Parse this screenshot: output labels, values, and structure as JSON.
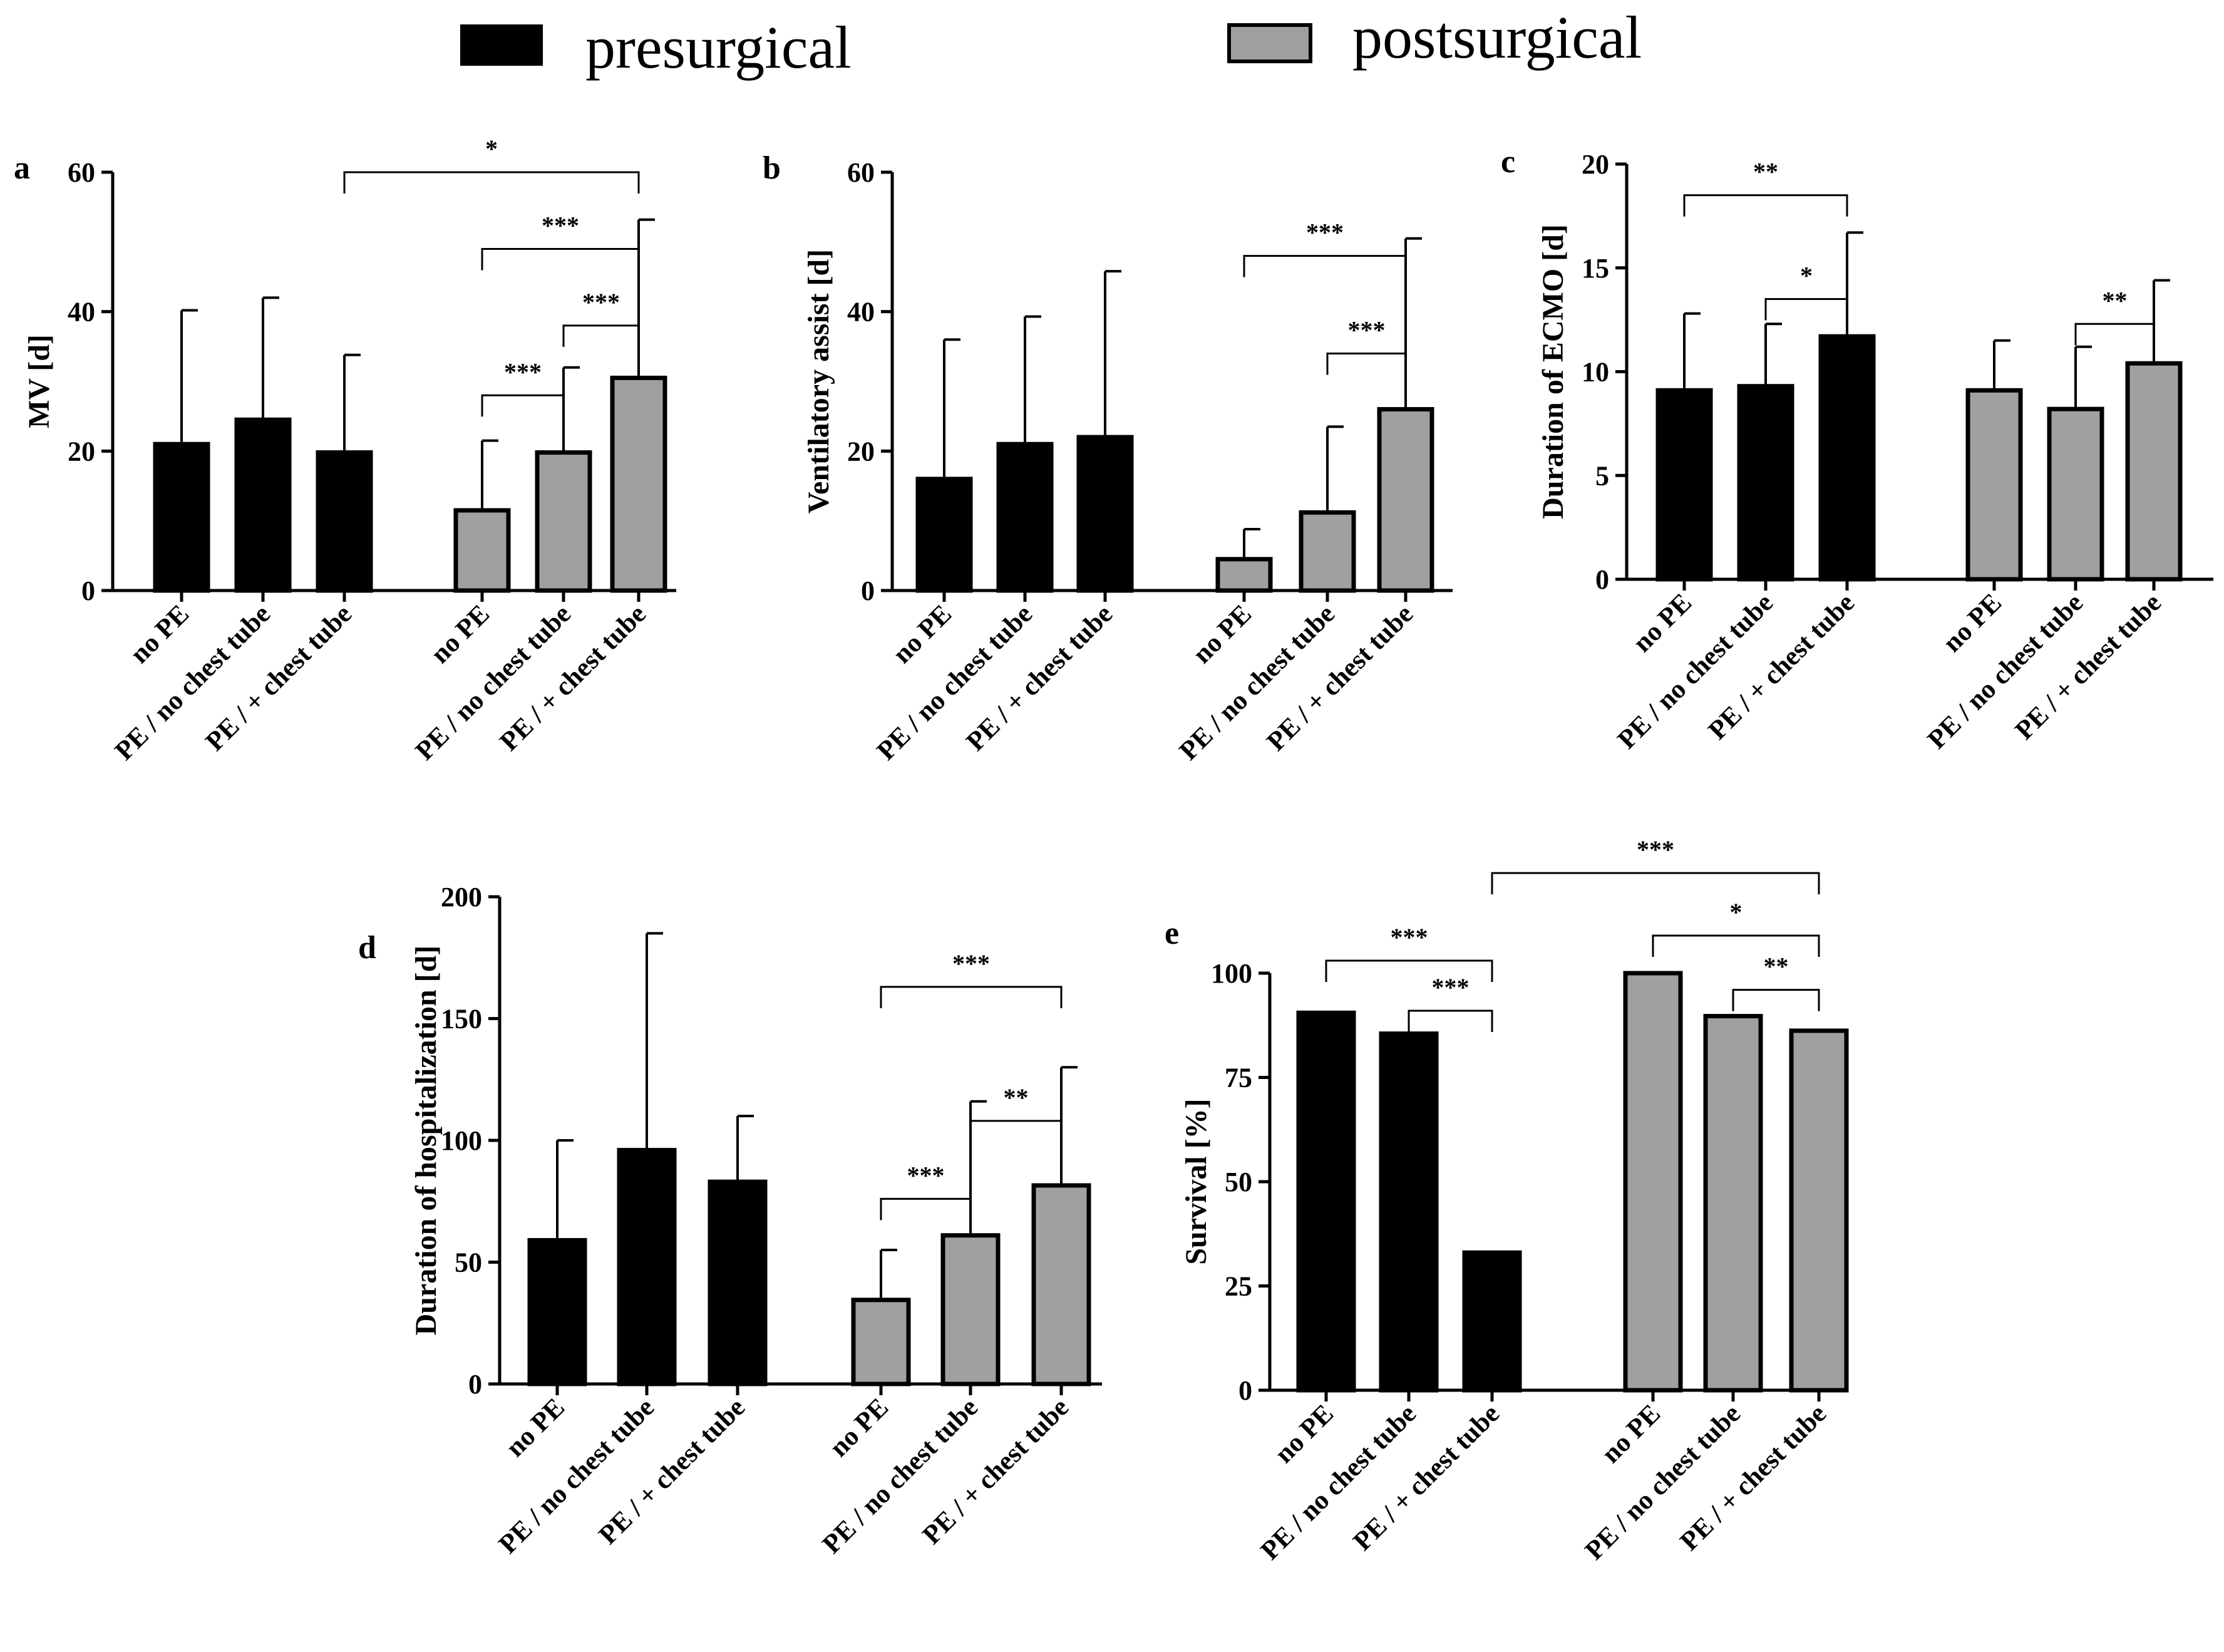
{
  "legend": {
    "presurgical_label": "presurgical",
    "postsurgical_label": "postsurgical",
    "presurgical_color": "#000000",
    "postsurgical_color": "#a0a0a0"
  },
  "chart_data": [
    {
      "panel": "a",
      "type": "bar",
      "ylabel": "MV [d]",
      "ylim": [
        0,
        60
      ],
      "yticks": [
        0,
        20,
        40,
        60
      ],
      "categories": [
        "no PE",
        "PE / no chest tube",
        "PE / + chest tube"
      ],
      "series": [
        {
          "name": "presurgical",
          "values": [
            21,
            24.5,
            19.8
          ],
          "error": [
            40.2,
            42,
            33.8
          ]
        },
        {
          "name": "postsurgical",
          "values": [
            11.5,
            19.8,
            30.5
          ],
          "error": [
            21.5,
            32,
            53.2
          ]
        }
      ],
      "annotations": [
        {
          "from": [
            0,
            2
          ],
          "to": [
            1,
            2
          ],
          "label": "*",
          "level": 60
        },
        {
          "from": [
            1,
            0
          ],
          "to": [
            1,
            2
          ],
          "label": "***",
          "level": 49
        },
        {
          "from": [
            1,
            1
          ],
          "to": [
            1,
            2
          ],
          "label": "***",
          "level": 38
        },
        {
          "from": [
            1,
            0
          ],
          "to": [
            1,
            1
          ],
          "label": "***",
          "level": 28
        }
      ]
    },
    {
      "panel": "b",
      "type": "bar",
      "ylabel": "Ventilatory assist [d]",
      "ylim": [
        0,
        60
      ],
      "yticks": [
        0,
        20,
        40,
        60
      ],
      "categories": [
        "no PE",
        "PE / no chest tube",
        "PE / + chest tube"
      ],
      "series": [
        {
          "name": "presurgical",
          "values": [
            16,
            21,
            22
          ],
          "error": [
            36,
            39.3,
            45.8
          ]
        },
        {
          "name": "postsurgical",
          "values": [
            4.5,
            11.2,
            26
          ],
          "error": [
            8.8,
            23.5,
            50.5
          ]
        }
      ],
      "annotations": [
        {
          "from": [
            1,
            0
          ],
          "to": [
            1,
            2
          ],
          "label": "***",
          "level": 48
        },
        {
          "from": [
            1,
            1
          ],
          "to": [
            1,
            2
          ],
          "label": "***",
          "level": 34
        }
      ]
    },
    {
      "panel": "c",
      "type": "bar",
      "ylabel": "Duration of ECMO [d]",
      "ylim": [
        0,
        20
      ],
      "yticks": [
        0,
        5,
        10,
        15,
        20
      ],
      "categories": [
        "no PE",
        "PE / no chest tube",
        "PE / + chest tube"
      ],
      "series": [
        {
          "name": "presurgical",
          "values": [
            9.1,
            9.3,
            11.7
          ],
          "error": [
            12.8,
            12.3,
            16.7
          ]
        },
        {
          "name": "postsurgical",
          "values": [
            9.1,
            8.2,
            10.4
          ],
          "error": [
            11.5,
            11.2,
            14.4
          ]
        }
      ],
      "annotations": [
        {
          "from": [
            0,
            0
          ],
          "to": [
            0,
            2
          ],
          "label": "**",
          "level": 18.5
        },
        {
          "from": [
            0,
            1
          ],
          "to": [
            0,
            2
          ],
          "label": "*",
          "level": 13.5
        },
        {
          "from": [
            1,
            1
          ],
          "to": [
            1,
            2
          ],
          "label": "**",
          "level": 12.3
        }
      ]
    },
    {
      "panel": "d",
      "type": "bar",
      "ylabel": "Duration of hospitalization [d]",
      "ylim": [
        0,
        200
      ],
      "yticks": [
        0,
        50,
        100,
        150,
        200
      ],
      "categories": [
        "no PE",
        "PE / no chest tube",
        "PE / + chest tube"
      ],
      "series": [
        {
          "name": "presurgical",
          "values": [
            59,
            96,
            83
          ],
          "error": [
            100,
            185,
            110
          ]
        },
        {
          "name": "postsurgical",
          "values": [
            34.5,
            61,
            81.5
          ],
          "error": [
            55,
            116,
            130
          ]
        }
      ],
      "annotations": [
        {
          "from": [
            1,
            0
          ],
          "to": [
            1,
            2
          ],
          "label": "***",
          "level": 163
        },
        {
          "from": [
            1,
            1
          ],
          "to": [
            1,
            2
          ],
          "label": "**",
          "level": 108
        },
        {
          "from": [
            1,
            0
          ],
          "to": [
            1,
            1
          ],
          "label": "***",
          "level": 76
        }
      ]
    },
    {
      "panel": "e",
      "type": "bar",
      "ylabel": "Survival [%]",
      "ylim": [
        0,
        100
      ],
      "yticks": [
        0,
        25,
        50,
        75,
        100
      ],
      "categories": [
        "no PE",
        "PE / no chest tube",
        "PE / + chest tube"
      ],
      "series": [
        {
          "name": "presurgical",
          "values": [
            90.5,
            85.5,
            33
          ],
          "error": null
        },
        {
          "name": "postsurgical",
          "values": [
            100,
            89.7,
            86.2
          ],
          "error": null
        }
      ],
      "annotations": [
        {
          "from": [
            0,
            2
          ],
          "to": [
            1,
            2
          ],
          "label": "***",
          "level": 124
        },
        {
          "from": [
            0,
            0
          ],
          "to": [
            0,
            2
          ],
          "label": "***",
          "level": 103
        },
        {
          "from": [
            1,
            0
          ],
          "to": [
            1,
            2
          ],
          "label": "*",
          "level": 109
        },
        {
          "from": [
            0,
            1
          ],
          "to": [
            0,
            2
          ],
          "label": "***",
          "level": 91
        },
        {
          "from": [
            1,
            1
          ],
          "to": [
            1,
            2
          ],
          "label": "**",
          "level": 96
        }
      ]
    }
  ]
}
